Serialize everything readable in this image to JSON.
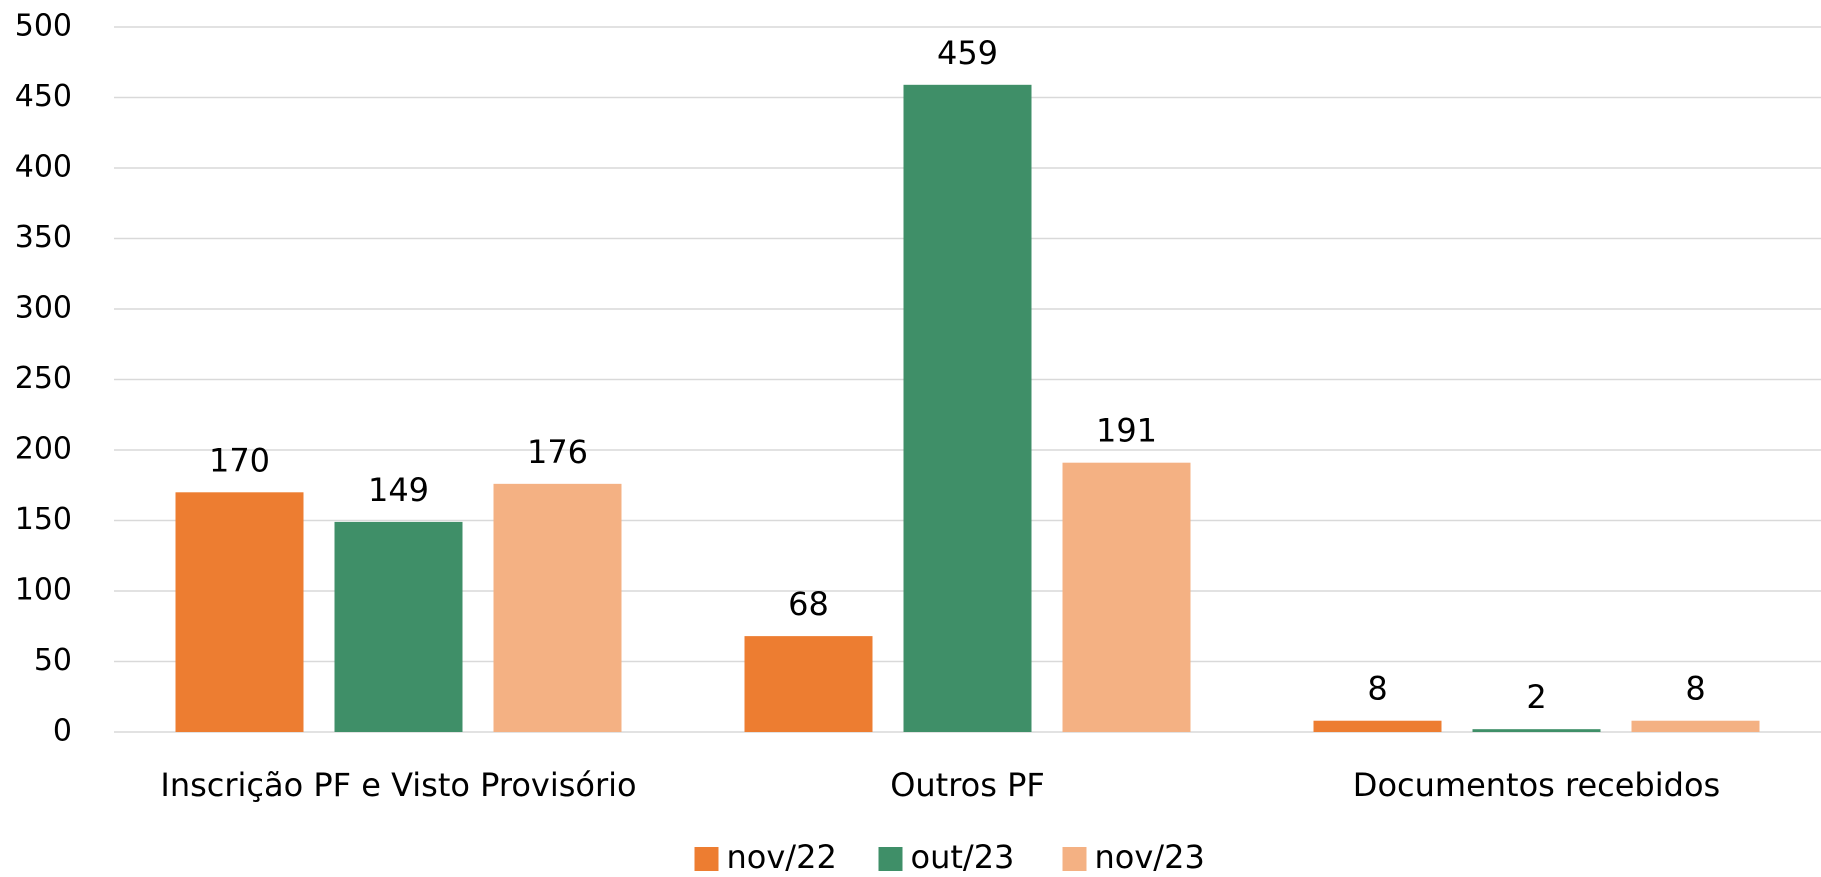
{
  "chart_data": {
    "type": "bar",
    "categories": [
      "Inscrição PF e Visto Provisório",
      "Outros PF",
      "Documentos recebidos"
    ],
    "series": [
      {
        "name": "nov/22",
        "color": "#ed7d31",
        "values": [
          170,
          68,
          8
        ]
      },
      {
        "name": "out/23",
        "color": "#3f8f68",
        "values": [
          149,
          459,
          2
        ]
      },
      {
        "name": "nov/23",
        "color": "#f4b183",
        "values": [
          176,
          191,
          8
        ]
      }
    ],
    "ylim": [
      0,
      500
    ],
    "yticks": [
      0,
      50,
      100,
      150,
      200,
      250,
      300,
      350,
      400,
      450,
      500
    ],
    "grid": true,
    "legend": "bottom"
  }
}
